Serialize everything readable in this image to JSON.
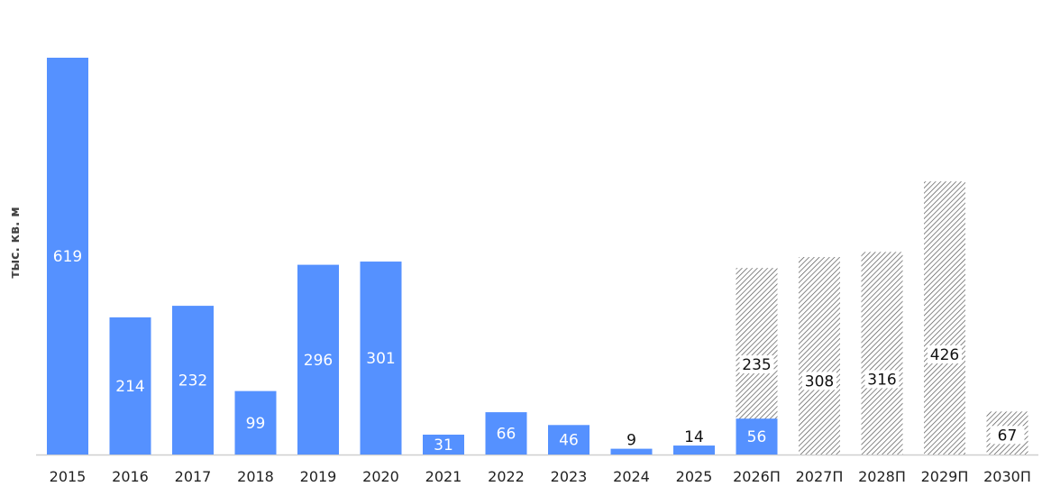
{
  "chart_data": {
    "type": "bar",
    "ylabel": "тыс. кв. м",
    "ylim": [
      0,
      619
    ],
    "grid": false,
    "categories": [
      "2015",
      "2016",
      "2017",
      "2018",
      "2019",
      "2020",
      "2021",
      "2022",
      "2023",
      "2024",
      "2025",
      "2026П",
      "2027П",
      "2028П",
      "2029П",
      "2030П"
    ],
    "series": [
      {
        "values": [
          619,
          214,
          232,
          99,
          296,
          301,
          31,
          66,
          46,
          9,
          14,
          56,
          null,
          null,
          null,
          null
        ]
      },
      {
        "values": [
          null,
          null,
          null,
          null,
          null,
          null,
          null,
          null,
          null,
          null,
          null,
          235,
          308,
          316,
          426,
          67
        ]
      }
    ],
    "value_labels": [
      "619",
      "214",
      "232",
      "99",
      "296",
      "301",
      "31",
      "66",
      "46",
      "9",
      "14",
      "56",
      "308",
      "316",
      "426",
      "67"
    ],
    "extra_labels": [
      "235"
    ],
    "colors": {
      "actual": "#5591ff",
      "forecast_hatch": "#555555",
      "axis": "#cfcfcf"
    }
  }
}
